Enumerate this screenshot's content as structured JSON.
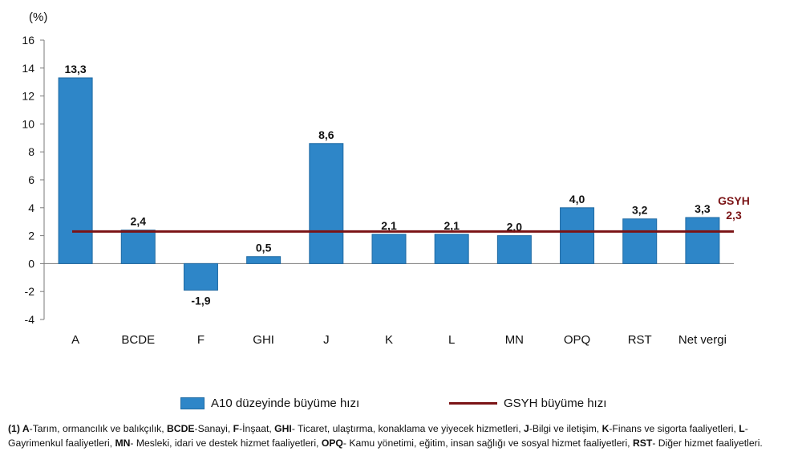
{
  "chart_data": {
    "type": "bar",
    "unit_label": "(%)",
    "categories": [
      "A",
      "BCDE",
      "F",
      "GHI",
      "J",
      "K",
      "L",
      "MN",
      "OPQ",
      "RST",
      "Net vergi"
    ],
    "values": [
      13.3,
      2.4,
      -1.9,
      0.5,
      8.6,
      2.1,
      2.1,
      2.0,
      4.0,
      3.2,
      3.3
    ],
    "value_labels": [
      "13,3",
      "2,4",
      "-1,9",
      "0,5",
      "8,6",
      "2,1",
      "2,1",
      "2,0",
      "4,0",
      "3,2",
      "3,3"
    ],
    "ylim": [
      -4,
      16
    ],
    "yticks": [
      -4,
      -2,
      0,
      2,
      4,
      6,
      8,
      10,
      12,
      14,
      16
    ],
    "reference_line": {
      "value": 2.3,
      "label_name": "GSYH",
      "label_value": "2,3"
    },
    "bar_color": "#2e86c8",
    "line_color": "#7b1416"
  },
  "legend": {
    "bar_label": "A10 düzeyinde büyüme hızı",
    "line_label": "GSYH büyüme hızı"
  },
  "footnote": {
    "prefix": "(1) ",
    "parts": [
      {
        "code": "A",
        "text": "-Tarım, ormancılık ve balıkçılık, "
      },
      {
        "code": "BCDE",
        "text": "-Sanayi, "
      },
      {
        "code": "F",
        "text": "-İnşaat, "
      },
      {
        "code": "GHI",
        "text": "- Ticaret, ulaştırma, konaklama ve yiyecek hizmetleri, "
      },
      {
        "code": "J",
        "text": "-Bilgi ve iletişim, "
      },
      {
        "code": "K",
        "text": "-Finans ve sigorta faaliyetleri, "
      },
      {
        "code": "L",
        "text": "-Gayrimenkul faaliyetleri, "
      },
      {
        "code": "MN",
        "text": "- Mesleki, idari ve destek hizmet faaliyetleri, "
      },
      {
        "code": "OPQ",
        "text": "- Kamu yönetimi, eğitim, insan sağlığı ve sosyal hizmet faaliyetleri, "
      },
      {
        "code": "RST",
        "text": "- Diğer hizmet faaliyetleri."
      }
    ]
  }
}
